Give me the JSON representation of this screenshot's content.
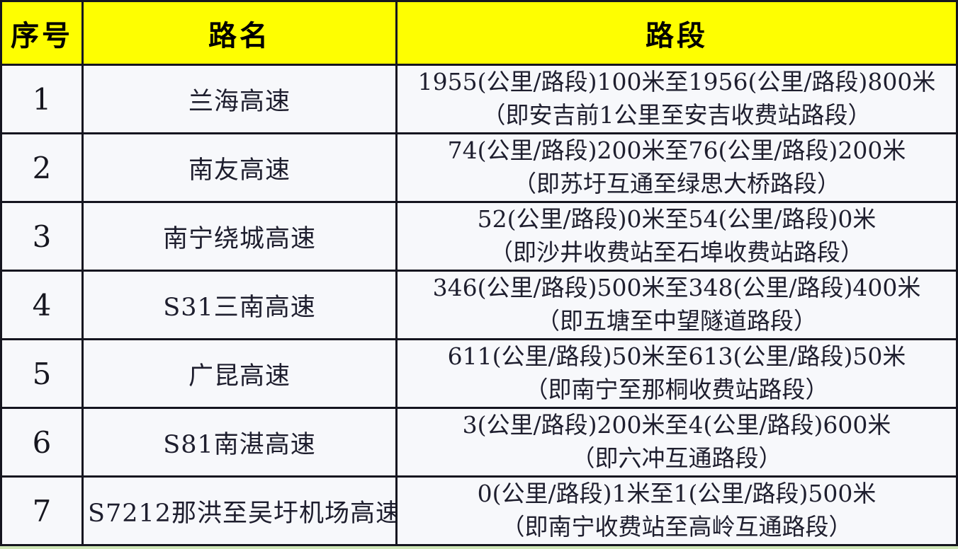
{
  "colors": {
    "header_bg": "#fefe01",
    "cell_bg": "#f7f8fb",
    "border": "#15151f",
    "text": "#1e1e2e",
    "bottom_strip": "#cee5b5"
  },
  "header": {
    "number": "序号",
    "road": "路名",
    "section": "路段"
  },
  "rows": [
    {
      "num": "1",
      "road": "兰海高速",
      "line1": "1955(公里/路段)100米至1956(公里/路段)800米",
      "line2": "（即安吉前1公里至安吉收费站路段）"
    },
    {
      "num": "2",
      "road": "南友高速",
      "line1": "74(公里/路段)200米至76(公里/路段)200米",
      "line2": "（即苏圩互通至绿思大桥路段）"
    },
    {
      "num": "3",
      "road": "南宁绕城高速",
      "line1": "52(公里/路段)0米至54(公里/路段)0米",
      "line2": "（即沙井收费站至石埠收费站路段）"
    },
    {
      "num": "4",
      "road": "S31三南高速",
      "line1": "346(公里/路段)500米至348(公里/路段)400米",
      "line2": "（即五塘至中望隧道路段）"
    },
    {
      "num": "5",
      "road": "广昆高速",
      "line1": "611(公里/路段)50米至613(公里/路段)50米",
      "line2": "（即南宁至那桐收费站路段）"
    },
    {
      "num": "6",
      "road": "S81南湛高速",
      "line1": "3(公里/路段)200米至4(公里/路段)600米",
      "line2": "（即六冲互通路段）"
    },
    {
      "num": "7",
      "road": "S7212那洪至吴圩机场高速",
      "line1": "0(公里/路段)1米至1(公里/路段)500米",
      "line2": "（即南宁收费站至高岭互通路段）"
    }
  ],
  "chart_data": {
    "type": "table",
    "columns": [
      "序号",
      "路名",
      "路段"
    ],
    "rows": [
      [
        "1",
        "兰海高速",
        "1955(公里/路段)100米至1956(公里/路段)800米（即安吉前1公里至安吉收费站路段）"
      ],
      [
        "2",
        "南友高速",
        "74(公里/路段)200米至76(公里/路段)200米（即苏圩互通至绿思大桥路段）"
      ],
      [
        "3",
        "南宁绕城高速",
        "52(公里/路段)0米至54(公里/路段)0米（即沙井收费站至石埠收费站路段）"
      ],
      [
        "4",
        "S31三南高速",
        "346(公里/路段)500米至348(公里/路段)400米（即五塘至中望隧道路段）"
      ],
      [
        "5",
        "广昆高速",
        "611(公里/路段)50米至613(公里/路段)50米（即南宁至那桐收费站路段）"
      ],
      [
        "6",
        "S81南湛高速",
        "3(公里/路段)200米至4(公里/路段)600米（即六冲互通路段）"
      ],
      [
        "7",
        "S7212那洪至吴圩机场高速",
        "0(公里/路段)1米至1(公里/路段)500米（即南宁收费站至高岭互通路段）"
      ]
    ]
  }
}
